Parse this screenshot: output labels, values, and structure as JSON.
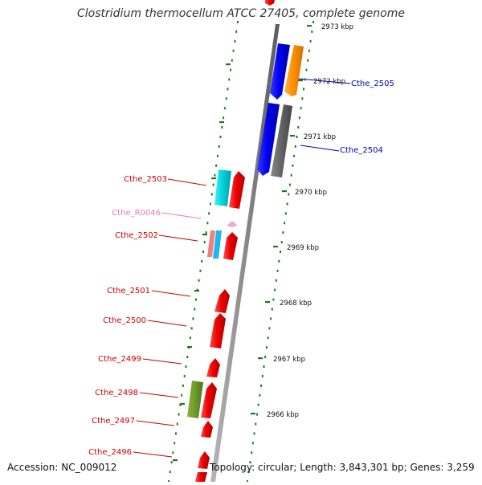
{
  "title": "Clostridium thermocellum ATCC 27405, complete genome",
  "accession": "Accession: NC_009012",
  "topology": "Topology: circular; Length: 3,843,301 bp; Genes: 3,259",
  "colors": {
    "backbone": "#8a8a8a",
    "tick": "#1e7a1e",
    "forward_label": "#cc0000",
    "reverse_label": "#0000bb",
    "rna_label": "#e080b0"
  },
  "kbp_ticks": [
    "2973 kbp",
    "2972 kbp",
    "2971 kbp",
    "2970 kbp",
    "2969 kbp",
    "2968 kbp",
    "2967 kbp",
    "2966 kbp"
  ],
  "gene_labels": [
    "Cthe_2505",
    "Cthe_2504",
    "Cthe_2503",
    "Cthe_R0046",
    "Cthe_2502",
    "Cthe_2501",
    "Cthe_2500",
    "Cthe_2499",
    "Cthe_2498",
    "Cthe_2497",
    "Cthe_2496"
  ]
}
